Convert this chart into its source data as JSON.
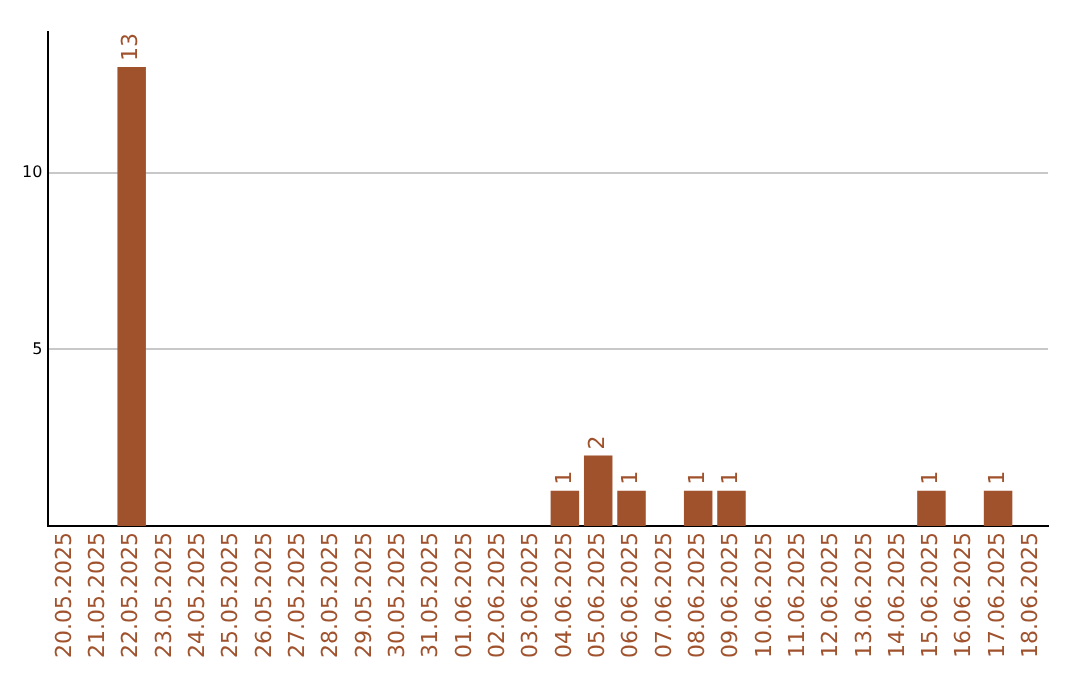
{
  "chart_data": {
    "type": "bar",
    "categories": [
      "20.05.2025",
      "21.05.2025",
      "22.05.2025",
      "23.05.2025",
      "24.05.2025",
      "25.05.2025",
      "26.05.2025",
      "27.05.2025",
      "28.05.2025",
      "29.05.2025",
      "30.05.2025",
      "31.05.2025",
      "01.06.2025",
      "02.06.2025",
      "03.06.2025",
      "04.06.2025",
      "05.06.2025",
      "06.06.2025",
      "07.06.2025",
      "08.06.2025",
      "09.06.2025",
      "10.06.2025",
      "11.06.2025",
      "12.06.2025",
      "13.06.2025",
      "14.06.2025",
      "15.06.2025",
      "16.06.2025",
      "17.06.2025",
      "18.06.2025"
    ],
    "values": [
      0,
      0,
      13,
      0,
      0,
      0,
      0,
      0,
      0,
      0,
      0,
      0,
      0,
      0,
      0,
      1,
      2,
      1,
      0,
      1,
      1,
      0,
      0,
      0,
      0,
      0,
      1,
      0,
      1,
      0
    ],
    "value_labels": [
      null,
      null,
      "13",
      null,
      null,
      null,
      null,
      null,
      null,
      null,
      null,
      null,
      null,
      null,
      null,
      "1",
      "2",
      "1",
      null,
      "1",
      "1",
      null,
      null,
      null,
      null,
      null,
      "1",
      null,
      "1",
      null
    ],
    "color": "#a0522d",
    "ylim": [
      0,
      14
    ],
    "yticks": [
      5,
      10
    ],
    "grid": "y",
    "legend": false
  }
}
